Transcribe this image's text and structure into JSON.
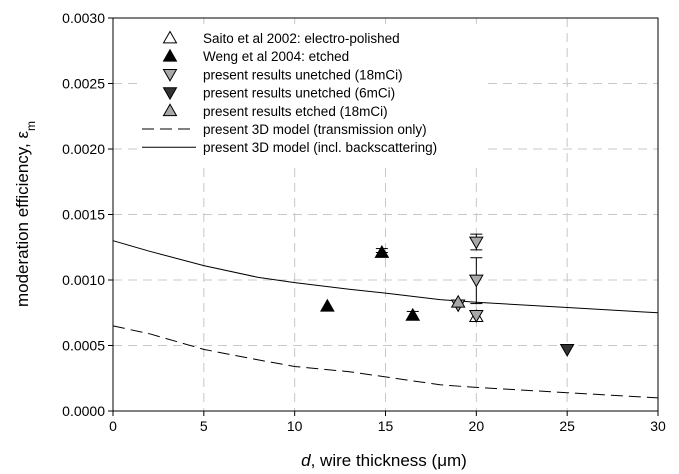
{
  "chart_data": {
    "type": "scatter",
    "title": "",
    "xlabel": {
      "italic": "d",
      "rest": ", wire thickness (",
      "unit": "μm",
      "close": ")"
    },
    "ylabel": {
      "main": "moderation efficiency, ε",
      "sub": "m"
    },
    "xlim": [
      0,
      30
    ],
    "ylim": [
      0,
      0.003
    ],
    "xticks": [
      "0",
      "5",
      "10",
      "15",
      "20",
      "25",
      "30"
    ],
    "yticks": [
      "0.0000",
      "0.0005",
      "0.0010",
      "0.0015",
      "0.0020",
      "0.0025",
      "0.0030"
    ],
    "grid": true,
    "legend_position": "top-left",
    "series": [
      {
        "name": "Saito et al 2002: electro-polished",
        "marker": "triangle-up",
        "color": "#ffffff",
        "points": [
          {
            "x": 20,
            "y": 0.00072
          }
        ]
      },
      {
        "name": "Weng et al 2004: etched",
        "marker": "triangle-up",
        "color": "#000000",
        "points": [
          {
            "x": 11.8,
            "y": 0.0008
          },
          {
            "x": 14.8,
            "y": 0.00121
          },
          {
            "x": 16.5,
            "y": 0.00073
          }
        ]
      },
      {
        "name": "present results unetched (18mCi)",
        "marker": "triangle-down",
        "color": "#a8a8a8",
        "points": [
          {
            "x": 20,
            "y": 0.00129
          },
          {
            "x": 20,
            "y": 0.001
          },
          {
            "x": 20,
            "y": 0.00073
          },
          {
            "x": 19,
            "y": 0.00081
          }
        ]
      },
      {
        "name": "present results unetched (6mCi)",
        "marker": "triangle-down",
        "color": "#333333",
        "points": [
          {
            "x": 25,
            "y": 0.00047
          }
        ]
      },
      {
        "name": "present results etched (18mCi)",
        "marker": "triangle-up",
        "color": "#a8a8a8",
        "points": [
          {
            "x": 19,
            "y": 0.00083
          }
        ]
      },
      {
        "name": "present 3D model (transmission only)",
        "line": "dashed",
        "color": "#000000",
        "points": [
          {
            "x": 0,
            "y": 0.00065
          },
          {
            "x": 2,
            "y": 0.00059
          },
          {
            "x": 5,
            "y": 0.00047
          },
          {
            "x": 8,
            "y": 0.00039
          },
          {
            "x": 10,
            "y": 0.00034
          },
          {
            "x": 13,
            "y": 0.0003
          },
          {
            "x": 15,
            "y": 0.00026
          },
          {
            "x": 18,
            "y": 0.0002
          },
          {
            "x": 20,
            "y": 0.00018
          },
          {
            "x": 25,
            "y": 0.00014
          },
          {
            "x": 30,
            "y": 0.0001
          }
        ]
      },
      {
        "name": "present 3D model (incl. backscattering)",
        "line": "solid",
        "color": "#000000",
        "points": [
          {
            "x": 0,
            "y": 0.0013
          },
          {
            "x": 2,
            "y": 0.00122
          },
          {
            "x": 5,
            "y": 0.00111
          },
          {
            "x": 8,
            "y": 0.00102
          },
          {
            "x": 10,
            "y": 0.00098
          },
          {
            "x": 13,
            "y": 0.00093
          },
          {
            "x": 15,
            "y": 0.0009
          },
          {
            "x": 18,
            "y": 0.00085
          },
          {
            "x": 20,
            "y": 0.00083
          },
          {
            "x": 25,
            "y": 0.00079
          },
          {
            "x": 30,
            "y": 0.00075
          }
        ]
      }
    ],
    "error_bars": [
      {
        "x": 14.8,
        "low": 0.00121,
        "high": 0.00124
      },
      {
        "x": 16.5,
        "low": 0.0007,
        "high": 0.00076
      },
      {
        "x": 20,
        "low": 0.00082,
        "high": 0.00117
      },
      {
        "x": 20,
        "low": 0.00123,
        "high": 0.00135
      }
    ]
  }
}
